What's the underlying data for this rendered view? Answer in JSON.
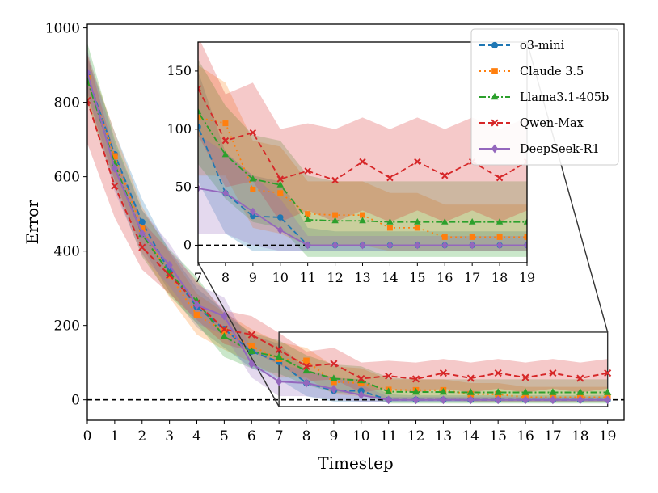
{
  "chart_data": {
    "type": "line",
    "xlabel": "Timestep",
    "ylabel": "Error",
    "xlim": [
      0,
      19.6
    ],
    "ylim": [
      -55,
      1010
    ],
    "xticks": [
      0,
      1,
      2,
      3,
      4,
      5,
      6,
      7,
      8,
      9,
      10,
      11,
      12,
      13,
      14,
      15,
      16,
      17,
      18,
      19
    ],
    "yticks": [
      0,
      200,
      400,
      600,
      800,
      1000
    ],
    "reference_line": 0,
    "legend_position": "inset-upper-right",
    "series": [
      {
        "name": "o3-mini",
        "color": "#1f77b4",
        "linestyle": "dashed",
        "marker": "circle",
        "x": [
          0,
          1,
          2,
          3,
          4,
          5,
          6,
          7,
          8,
          9,
          10,
          11,
          12,
          13,
          14,
          15,
          16,
          17,
          18,
          19
        ],
        "values": [
          870,
          660,
          478,
          345,
          250,
          190,
          130,
          102,
          45,
          25,
          24,
          0,
          0,
          0,
          0,
          0,
          0,
          0,
          0,
          0
        ],
        "band": [
          [
            820,
            920
          ],
          [
            590,
            720
          ],
          [
            410,
            540
          ],
          [
            290,
            400
          ],
          [
            195,
            300
          ],
          [
            140,
            240
          ],
          [
            85,
            175
          ],
          [
            55,
            150
          ],
          [
            10,
            80
          ],
          [
            -5,
            60
          ],
          [
            -5,
            55
          ],
          [
            -5,
            15
          ],
          [
            -5,
            12
          ],
          [
            -5,
            12
          ],
          [
            -5,
            12
          ],
          [
            -5,
            12
          ],
          [
            -5,
            12
          ],
          [
            -5,
            12
          ],
          [
            -5,
            12
          ],
          [
            -5,
            12
          ]
        ]
      },
      {
        "name": "Claude 3.5",
        "color": "#ff7f0e",
        "linestyle": "dotted",
        "marker": "square",
        "x": [
          0,
          1,
          2,
          3,
          4,
          5,
          6,
          7,
          8,
          9,
          10,
          11,
          12,
          13,
          14,
          15,
          16,
          17,
          18,
          19
        ],
        "values": [
          865,
          655,
          460,
          335,
          228,
          185,
          145,
          110,
          105,
          48,
          45,
          27,
          26,
          26,
          15,
          15,
          7,
          7,
          7,
          7
        ],
        "band": [
          [
            800,
            930
          ],
          [
            590,
            720
          ],
          [
            395,
            520
          ],
          [
            275,
            395
          ],
          [
            175,
            285
          ],
          [
            135,
            235
          ],
          [
            100,
            190
          ],
          [
            60,
            155
          ],
          [
            60,
            140
          ],
          [
            15,
            90
          ],
          [
            10,
            85
          ],
          [
            0,
            55
          ],
          [
            0,
            55
          ],
          [
            0,
            55
          ],
          [
            -5,
            45
          ],
          [
            -5,
            45
          ],
          [
            -5,
            35
          ],
          [
            -5,
            35
          ],
          [
            -5,
            35
          ],
          [
            -5,
            35
          ]
        ]
      },
      {
        "name": "Llama3.1-405b",
        "color": "#2ca02c",
        "linestyle": "dashdot",
        "marker": "triangle",
        "x": [
          0,
          1,
          2,
          3,
          4,
          5,
          6,
          7,
          8,
          9,
          10,
          11,
          12,
          13,
          14,
          15,
          16,
          17,
          18,
          19
        ],
        "values": [
          860,
          635,
          445,
          340,
          265,
          170,
          130,
          115,
          78,
          57,
          52,
          22,
          21,
          21,
          20,
          20,
          20,
          20,
          20,
          20
        ],
        "band": [
          [
            800,
            960
          ],
          [
            570,
            700
          ],
          [
            385,
            510
          ],
          [
            280,
            405
          ],
          [
            205,
            330
          ],
          [
            115,
            230
          ],
          [
            85,
            180
          ],
          [
            70,
            160
          ],
          [
            40,
            120
          ],
          [
            20,
            95
          ],
          [
            15,
            90
          ],
          [
            -10,
            60
          ],
          [
            -10,
            55
          ],
          [
            -10,
            55
          ],
          [
            -10,
            55
          ],
          [
            -10,
            55
          ],
          [
            -10,
            55
          ],
          [
            -10,
            55
          ],
          [
            -10,
            55
          ],
          [
            -10,
            55
          ]
        ]
      },
      {
        "name": "Qwen-Max",
        "color": "#d62728",
        "linestyle": "dashed",
        "marker": "x",
        "x": [
          0,
          1,
          2,
          3,
          4,
          5,
          6,
          7,
          8,
          9,
          10,
          11,
          12,
          13,
          14,
          15,
          16,
          17,
          18,
          19
        ],
        "values": [
          805,
          575,
          410,
          335,
          260,
          190,
          175,
          135,
          90,
          97,
          57,
          64,
          56,
          72,
          58,
          72,
          60,
          72,
          58,
          72
        ],
        "band": [
          [
            690,
            930
          ],
          [
            490,
            660
          ],
          [
            350,
            480
          ],
          [
            285,
            400
          ],
          [
            215,
            320
          ],
          [
            150,
            240
          ],
          [
            130,
            225
          ],
          [
            95,
            180
          ],
          [
            50,
            130
          ],
          [
            55,
            140
          ],
          [
            20,
            100
          ],
          [
            30,
            105
          ],
          [
            20,
            100
          ],
          [
            30,
            110
          ],
          [
            20,
            100
          ],
          [
            30,
            110
          ],
          [
            20,
            100
          ],
          [
            30,
            110
          ],
          [
            20,
            100
          ],
          [
            30,
            110
          ]
        ]
      },
      {
        "name": "DeepSeek-R1",
        "color": "#9467bd",
        "linestyle": "solid",
        "marker": "diamond",
        "x": [
          0,
          1,
          2,
          3,
          4,
          5,
          6,
          7,
          8,
          9,
          10,
          11,
          12,
          13,
          14,
          15,
          16,
          17,
          18,
          19
        ],
        "values": [
          880,
          622,
          448,
          362,
          255,
          225,
          97,
          49,
          45,
          29,
          13,
          0,
          0,
          0,
          0,
          0,
          0,
          0,
          0,
          0
        ],
        "band": [
          [
            830,
            940
          ],
          [
            560,
            690
          ],
          [
            390,
            510
          ],
          [
            305,
            420
          ],
          [
            205,
            310
          ],
          [
            175,
            275
          ],
          [
            60,
            140
          ],
          [
            10,
            95
          ],
          [
            10,
            80
          ],
          [
            0,
            60
          ],
          [
            -5,
            40
          ],
          [
            -5,
            8
          ],
          [
            -5,
            8
          ],
          [
            -5,
            8
          ],
          [
            -5,
            8
          ],
          [
            -5,
            8
          ],
          [
            -5,
            8
          ],
          [
            -5,
            8
          ],
          [
            -5,
            8
          ],
          [
            -5,
            8
          ]
        ]
      }
    ],
    "inset": {
      "xlim": [
        7,
        19
      ],
      "ylim": [
        -15,
        175
      ],
      "xticks": [
        7,
        8,
        9,
        10,
        11,
        12,
        13,
        14,
        15,
        16,
        17,
        18,
        19
      ],
      "yticks": [
        0,
        50,
        100,
        150
      ],
      "zoom_region_x": [
        7,
        19
      ],
      "zoom_region_y": [
        -18,
        182
      ]
    }
  }
}
